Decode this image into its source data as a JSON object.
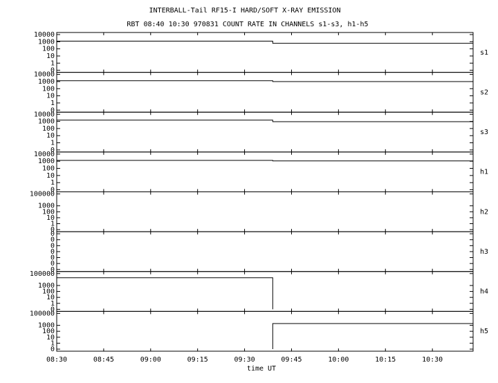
{
  "chart_data": {
    "type": "line",
    "title": "INTERBALL-Tail RF15-I HARD/SOFT X-RAY EMISSION",
    "subtitle": "RBT 08:40 10:30 970831  COUNT RATE IN CHANNELS s1-s3, h1-h5",
    "x_label": "time UT",
    "color": "#000000",
    "xlim": [
      "08:30",
      "10:43"
    ],
    "xticks": [
      "08:30",
      "08:45",
      "09:00",
      "09:15",
      "09:30",
      "09:45",
      "10:00",
      "10:15",
      "10:30"
    ],
    "panels": [
      {
        "name": "s1",
        "yscale": "symlog",
        "ylim": [
          0,
          10000
        ],
        "yticks": [
          10000,
          1000,
          100,
          10,
          1,
          0
        ],
        "x": [
          "08:30",
          "09:39",
          "09:39",
          "10:43"
        ],
        "values": [
          1200,
          1200,
          600,
          600
        ]
      },
      {
        "name": "s2",
        "yscale": "symlog",
        "ylim": [
          0,
          10000
        ],
        "yticks": [
          10000,
          1000,
          100,
          10,
          1,
          0
        ],
        "x": [
          "08:30",
          "09:39",
          "09:39",
          "10:43"
        ],
        "values": [
          1300,
          1300,
          1000,
          1000
        ]
      },
      {
        "name": "s3",
        "yscale": "symlog",
        "ylim": [
          0,
          10000
        ],
        "yticks": [
          10000,
          1000,
          100,
          10,
          1,
          0
        ],
        "x": [
          "08:30",
          "09:39",
          "09:39",
          "10:43"
        ],
        "values": [
          1500,
          1500,
          900,
          900
        ]
      },
      {
        "name": "h1",
        "yscale": "symlog",
        "ylim": [
          0,
          10000
        ],
        "yticks": [
          10000,
          1000,
          100,
          10,
          1,
          0
        ],
        "x": [
          "08:30",
          "09:39",
          "09:39",
          "10:43"
        ],
        "values": [
          1300,
          1300,
          1100,
          1100
        ]
      },
      {
        "name": "h2",
        "yscale": "symlog",
        "ylim": [
          0,
          100000
        ],
        "yticks": [
          100000,
          1000,
          100,
          10,
          1,
          0
        ]
      },
      {
        "name": "h3",
        "yscale": "linear",
        "ylim": [
          -0.3,
          0.3
        ],
        "yticks": [
          {
            "value": 0.3,
            "label": "0"
          },
          {
            "value": 0.2,
            "label": "0"
          },
          {
            "value": 0.1,
            "label": "0"
          },
          0,
          {
            "value": -0.1,
            "label": "0"
          },
          {
            "value": -0.2,
            "label": "0"
          },
          {
            "value": -0.3,
            "label": "0"
          }
        ]
      },
      {
        "name": "h4",
        "yscale": "symlog",
        "ylim": [
          0,
          100000
        ],
        "yticks": [
          100000,
          1000,
          100,
          10,
          1,
          0
        ],
        "x": [
          "08:30",
          "09:39",
          "09:39"
        ],
        "values": [
          20000,
          20000,
          0
        ]
      },
      {
        "name": "h5",
        "yscale": "symlog",
        "ylim": [
          0,
          100000
        ],
        "yticks": [
          100000,
          1000,
          100,
          10,
          1,
          0
        ],
        "x": [
          "09:39",
          "09:39",
          "10:43"
        ],
        "values": [
          0,
          2000,
          2000
        ]
      }
    ]
  }
}
